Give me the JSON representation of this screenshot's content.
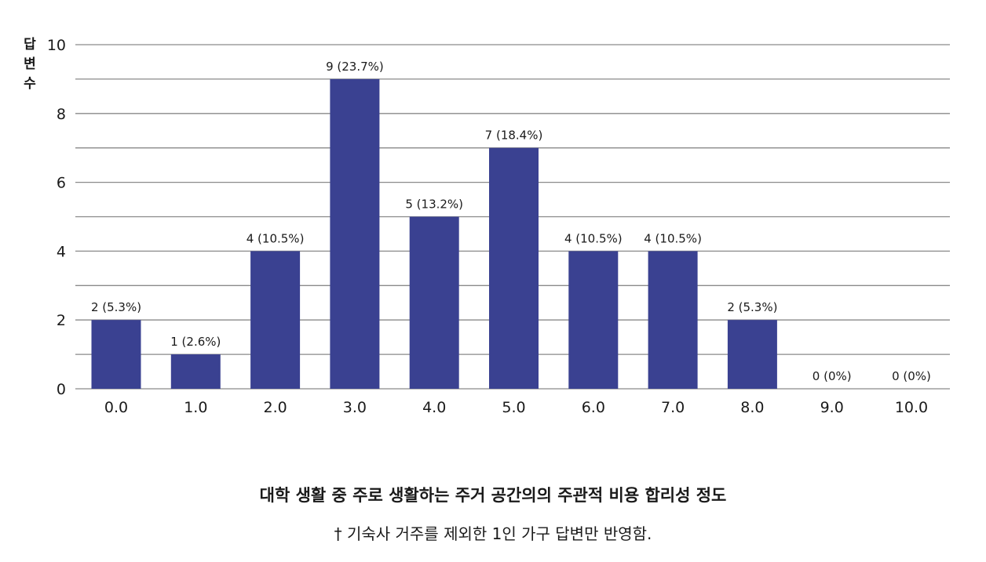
{
  "chart_data": {
    "type": "bar",
    "ylabel": "답변수",
    "xlabel": "",
    "ylim": [
      0,
      10
    ],
    "yticks": [
      "0",
      "2",
      "4",
      "6",
      "8",
      "10"
    ],
    "grid": true,
    "categories": [
      "0.0",
      "1.0",
      "2.0",
      "3.0",
      "4.0",
      "5.0",
      "6.0",
      "7.0",
      "8.0",
      "9.0",
      "10.0"
    ],
    "values": [
      2,
      1,
      4,
      9,
      5,
      7,
      4,
      4,
      2,
      0,
      0
    ],
    "data_labels": [
      "2 (5.3%)",
      "1 (2.6%)",
      "4 (10.5%)",
      "9 (23.7%)",
      "5 (13.2%)",
      "7 (18.4%)",
      "4 (10.5%)",
      "4 (10.5%)",
      "2 (5.3%)",
      "0 (0%)",
      "0 (0%)"
    ],
    "bar_color": "#3a4191",
    "grid_color": "#8a8a8a"
  },
  "caption": {
    "title": "대학 생활 중 주로 생활하는 주거 공간의의 주관적 비용 합리성 정도",
    "note": "† 기숙사 거주를 제외한 1인 가구 답변만 반영함."
  }
}
